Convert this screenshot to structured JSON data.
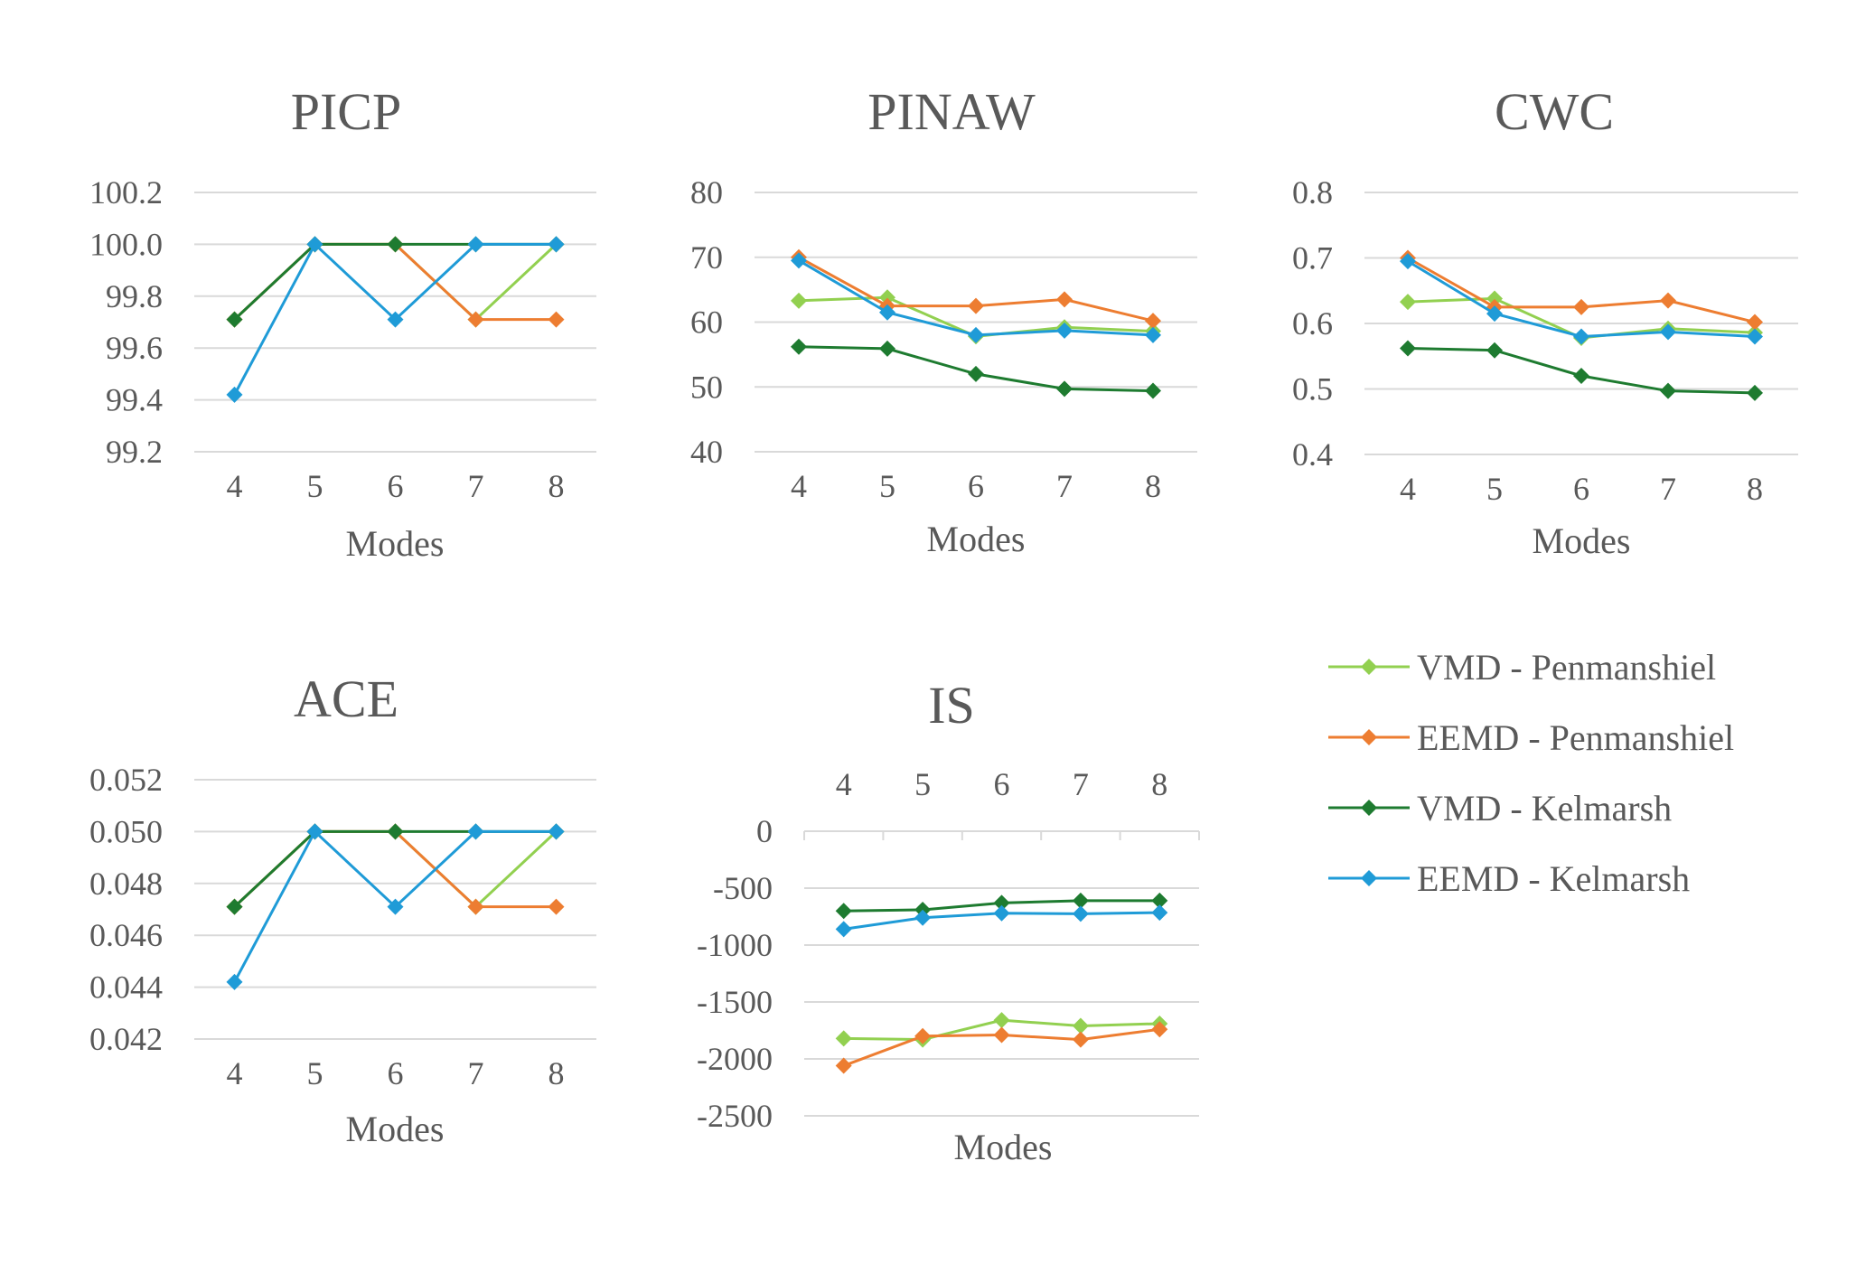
{
  "legend": {
    "placement": "right",
    "entries": [
      {
        "key": "vmd_pen",
        "label": "VMD - Penmanshiel",
        "color": "#92d050"
      },
      {
        "key": "eemd_pen",
        "label": "EEMD - Penmanshiel",
        "color": "#ed7d31"
      },
      {
        "key": "vmd_kel",
        "label": "VMD - Kelmarsh",
        "color": "#1e7b30"
      },
      {
        "key": "eemd_kel",
        "label": "EEMD - Kelmarsh",
        "color": "#1f9bd7"
      }
    ]
  },
  "chart_data": [
    {
      "id": "picp",
      "type": "line",
      "title": "PICP",
      "xlabel": "Modes",
      "ylabel": "",
      "categories": [
        "4",
        "5",
        "6",
        "7",
        "8"
      ],
      "ylim": [
        99.2,
        100.2
      ],
      "yticks": [
        "99.2",
        "99.4",
        "99.6",
        "99.8",
        "100.0",
        "100.2"
      ],
      "grid": true,
      "series": [
        {
          "name": "VMD - Penmanshiel",
          "values": [
            99.71,
            100.0,
            100.0,
            99.71,
            100.0
          ]
        },
        {
          "name": "EEMD - Penmanshiel",
          "values": [
            99.71,
            100.0,
            100.0,
            99.71,
            99.71
          ]
        },
        {
          "name": "VMD - Kelmarsh",
          "values": [
            99.71,
            100.0,
            100.0,
            100.0,
            100.0
          ]
        },
        {
          "name": "EEMD - Kelmarsh",
          "values": [
            99.42,
            100.0,
            99.71,
            100.0,
            100.0
          ]
        }
      ]
    },
    {
      "id": "pinaw",
      "type": "line",
      "title": "PINAW",
      "xlabel": "Modes",
      "ylabel": "",
      "categories": [
        "4",
        "5",
        "6",
        "7",
        "8"
      ],
      "ylim": [
        40,
        80
      ],
      "yticks": [
        "40",
        "50",
        "60",
        "70",
        "80"
      ],
      "grid": true,
      "series": [
        {
          "name": "VMD - Penmanshiel",
          "values": [
            63.3,
            63.8,
            57.8,
            59.2,
            58.6
          ]
        },
        {
          "name": "EEMD - Penmanshiel",
          "values": [
            70.0,
            62.5,
            62.5,
            63.5,
            60.2
          ]
        },
        {
          "name": "VMD - Kelmarsh",
          "values": [
            56.2,
            55.9,
            52.0,
            49.7,
            49.4
          ]
        },
        {
          "name": "EEMD - Kelmarsh",
          "values": [
            69.5,
            61.5,
            58.0,
            58.7,
            58.0
          ]
        }
      ]
    },
    {
      "id": "cwc",
      "type": "line",
      "title": "CWC",
      "xlabel": "Modes",
      "ylabel": "",
      "categories": [
        "4",
        "5",
        "6",
        "7",
        "8"
      ],
      "ylim": [
        0.4,
        0.8
      ],
      "yticks": [
        "0.4",
        "0.5",
        "0.6",
        "0.7",
        "0.8"
      ],
      "grid": true,
      "series": [
        {
          "name": "VMD - Penmanshiel",
          "values": [
            0.633,
            0.638,
            0.578,
            0.592,
            0.586
          ]
        },
        {
          "name": "EEMD - Penmanshiel",
          "values": [
            0.7,
            0.625,
            0.625,
            0.635,
            0.602
          ]
        },
        {
          "name": "VMD - Kelmarsh",
          "values": [
            0.562,
            0.559,
            0.52,
            0.497,
            0.494
          ]
        },
        {
          "name": "EEMD - Kelmarsh",
          "values": [
            0.695,
            0.615,
            0.58,
            0.587,
            0.58
          ]
        }
      ]
    },
    {
      "id": "ace",
      "type": "line",
      "title": "ACE",
      "xlabel": "Modes",
      "ylabel": "",
      "categories": [
        "4",
        "5",
        "6",
        "7",
        "8"
      ],
      "ylim": [
        0.042,
        0.052
      ],
      "yticks": [
        "0.042",
        "0.044",
        "0.046",
        "0.048",
        "0.050",
        "0.052"
      ],
      "grid": true,
      "series": [
        {
          "name": "VMD - Penmanshiel",
          "values": [
            0.0471,
            0.05,
            0.05,
            0.0471,
            0.05
          ]
        },
        {
          "name": "EEMD - Penmanshiel",
          "values": [
            0.0471,
            0.05,
            0.05,
            0.0471,
            0.0471
          ]
        },
        {
          "name": "VMD - Kelmarsh",
          "values": [
            0.0471,
            0.05,
            0.05,
            0.05,
            0.05
          ]
        },
        {
          "name": "EEMD - Kelmarsh",
          "values": [
            0.0442,
            0.05,
            0.0471,
            0.05,
            0.05
          ]
        }
      ]
    },
    {
      "id": "is",
      "type": "line",
      "title": "IS",
      "xlabel": "Modes",
      "ylabel": "",
      "categories": [
        "4",
        "5",
        "6",
        "7",
        "8"
      ],
      "ylim": [
        -2500,
        0
      ],
      "yticks": [
        "-2500",
        "-2000",
        "-1500",
        "-1000",
        "-500",
        "0"
      ],
      "xaxis_position": "top",
      "grid": true,
      "series": [
        {
          "name": "VMD - Penmanshiel",
          "values": [
            -1820,
            -1830,
            -1660,
            -1710,
            -1690
          ]
        },
        {
          "name": "EEMD - Penmanshiel",
          "values": [
            -2060,
            -1800,
            -1790,
            -1830,
            -1740
          ]
        },
        {
          "name": "VMD - Kelmarsh",
          "values": [
            -700,
            -690,
            -630,
            -610,
            -610
          ]
        },
        {
          "name": "EEMD - Kelmarsh",
          "values": [
            -860,
            -760,
            -720,
            -725,
            -715
          ]
        }
      ]
    }
  ]
}
